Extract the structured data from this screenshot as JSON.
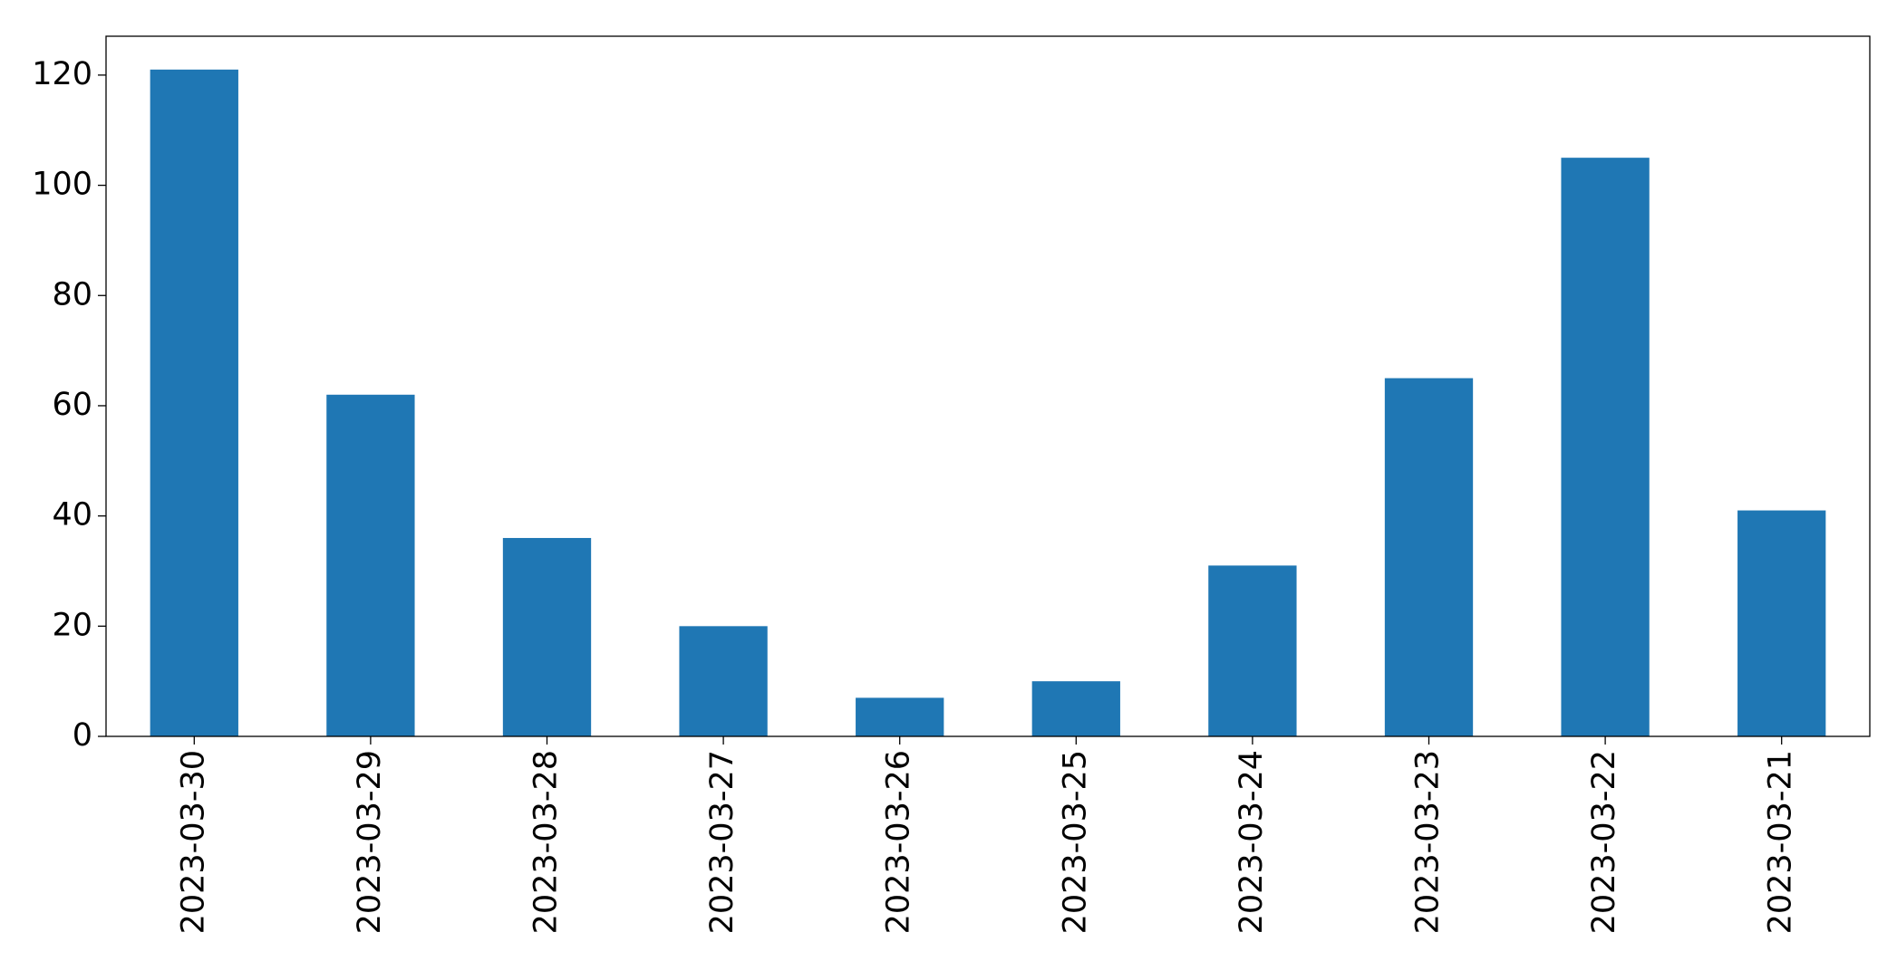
{
  "chart_data": {
    "type": "bar",
    "categories": [
      "2023-03-30",
      "2023-03-29",
      "2023-03-28",
      "2023-03-27",
      "2023-03-26",
      "2023-03-25",
      "2023-03-24",
      "2023-03-23",
      "2023-03-22",
      "2023-03-21"
    ],
    "values": [
      121,
      62,
      36,
      20,
      7,
      10,
      31,
      65,
      105,
      41
    ],
    "color": "#1f77b4",
    "ylim": [
      0,
      127.05
    ],
    "yticks": [
      0,
      20,
      40,
      60,
      80,
      100,
      120
    ],
    "grid": false
  }
}
